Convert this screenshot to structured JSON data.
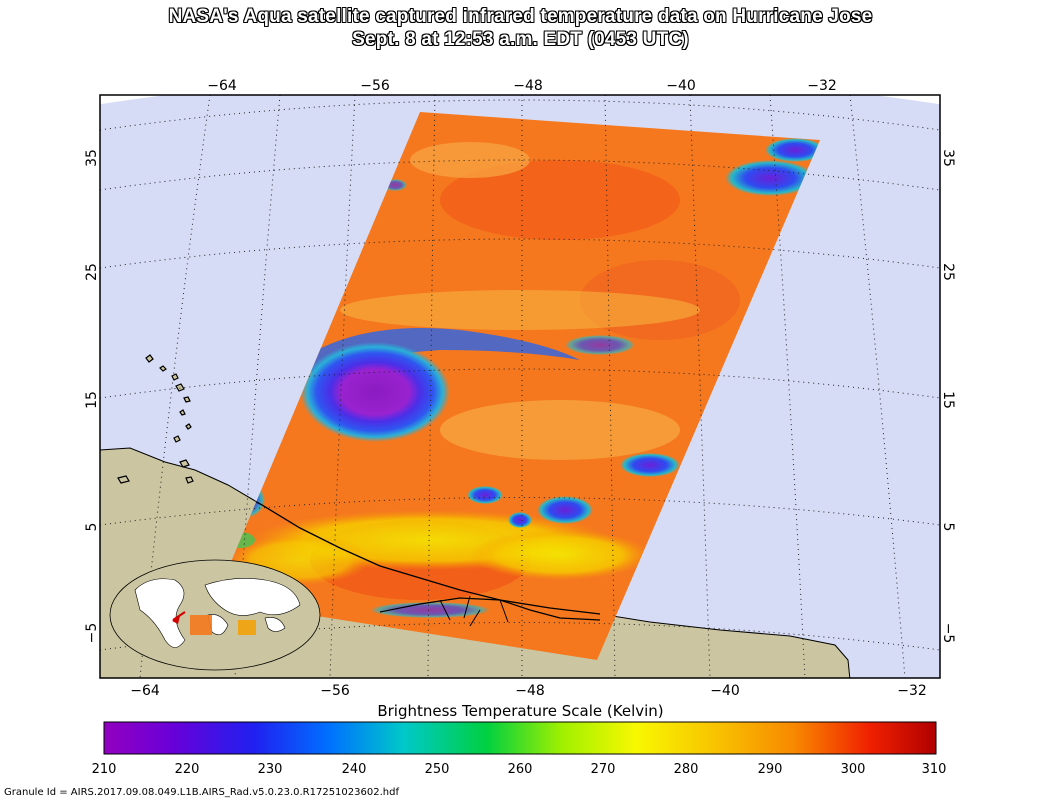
{
  "title_line1": "NASA's Aqua satellite captured infrared temperature data on Hurricane Jose",
  "title_line2": "Sept. 8 at 12:53 a.m. EDT (0453 UTC)",
  "longitude_labels": [
    "−64",
    "−56",
    "−48",
    "−40",
    "−32"
  ],
  "latitude_labels": [
    "35",
    "25",
    "15",
    "5",
    "−5"
  ],
  "scale": {
    "title": "Brightness Temperature Scale (Kelvin)",
    "ticks": [
      "210",
      "220",
      "230",
      "240",
      "250",
      "260",
      "270",
      "280",
      "290",
      "300",
      "310"
    ],
    "min": 210,
    "max": 310
  },
  "granule_id": "Granule Id = AIRS.2017.09.08.049.L1B.AIRS_Rad.v5.0.23.0.R17251023602.hdf",
  "colors": {
    "ocean": "#d6dcf6",
    "land": "#cbc6a1",
    "warm": "#f5781e",
    "storm_core": "#9a1dc6",
    "storm_ring": "#3a3ae6"
  }
}
